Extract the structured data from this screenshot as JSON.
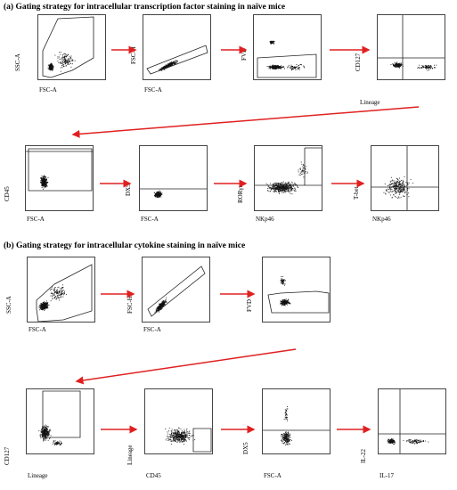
{
  "sections": {
    "a_title": "(a) Gating strategy for intracellular transcription factor staining in naïve mice",
    "b_title": "(b) Gating strategy for intracellular cytokine staining in naïve mice"
  },
  "panels": [
    {
      "id": "a1",
      "x": "FSC-A",
      "y": "SSC-A"
    },
    {
      "id": "a2",
      "x": "FSC-A",
      "y": "FSC-H"
    },
    {
      "id": "a3",
      "x": "",
      "y": "FVD"
    },
    {
      "id": "a4",
      "x": "Lineage",
      "y": "CD127"
    },
    {
      "id": "a5",
      "x": "FSC-A",
      "y": "CD45"
    },
    {
      "id": "a6",
      "x": "FSC-A",
      "y": "DX5"
    },
    {
      "id": "a7",
      "x": "NKp46",
      "y": "RORγt"
    },
    {
      "id": "a8",
      "x": "NKp46",
      "y": "T-bet"
    },
    {
      "id": "b1",
      "x": "FSC-A",
      "y": "SSC-A"
    },
    {
      "id": "b2",
      "x": "FSC-A",
      "y": "FSC-H"
    },
    {
      "id": "b3",
      "x": "",
      "y": "FVD"
    },
    {
      "id": "b4",
      "x": "Lineage",
      "y": "CD127"
    },
    {
      "id": "b5",
      "x": "CD45",
      "y": "Lineage"
    },
    {
      "id": "b6",
      "x": "FSC-A",
      "y": "DX5"
    },
    {
      "id": "b7",
      "x": "IL-17",
      "y": "IL-22"
    }
  ],
  "colors": {
    "gate": "#222222",
    "arrow": "#e02020",
    "dots": "#111111"
  }
}
